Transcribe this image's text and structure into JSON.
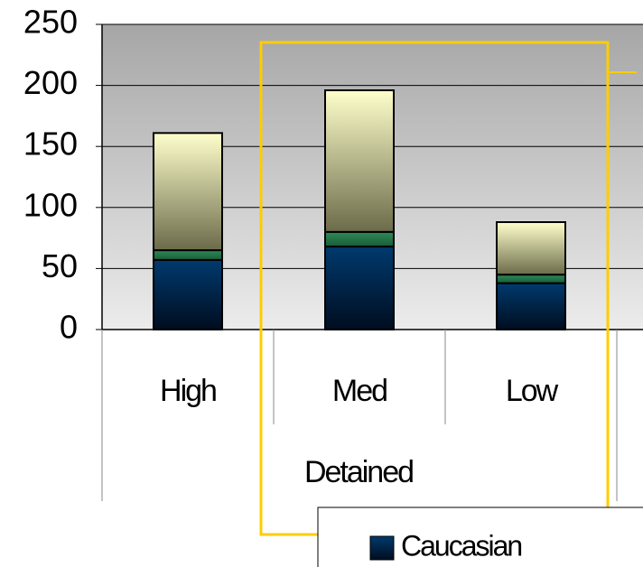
{
  "chart_data": {
    "type": "bar",
    "stacked": true,
    "categories": [
      "High",
      "Med",
      "Low"
    ],
    "group_label": "Detained",
    "series": [
      {
        "name": "Caucasian",
        "color": "#003a6e",
        "values": [
          57,
          68,
          38
        ]
      },
      {
        "color": "#2e8b57",
        "values": [
          8,
          12,
          7
        ]
      },
      {
        "color": "#ffffcc",
        "values": [
          96,
          116,
          43
        ]
      }
    ],
    "ylim": [
      0,
      250
    ],
    "yticks": [
      0,
      50,
      100,
      150,
      200,
      250
    ],
    "grid": true
  }
}
